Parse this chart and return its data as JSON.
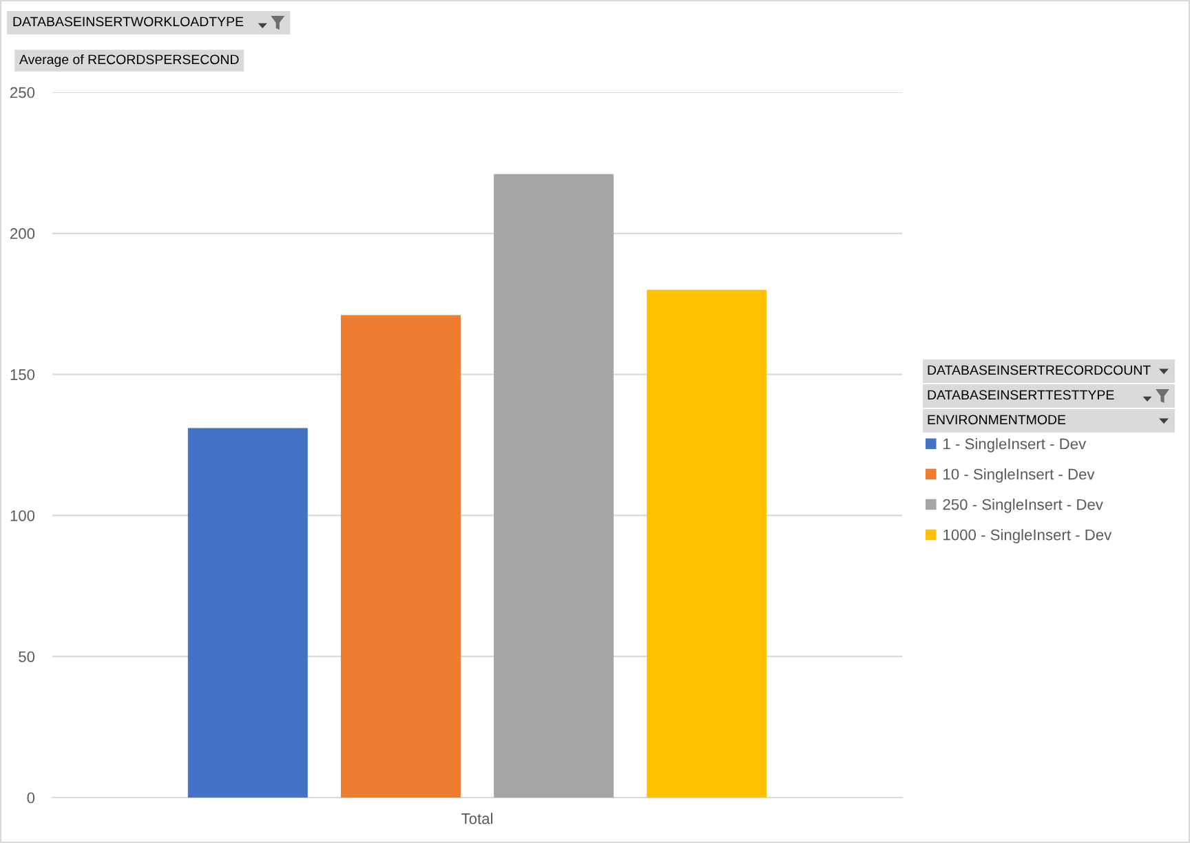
{
  "chart_data": {
    "type": "bar",
    "ylabel": "Average of RECORDSPERSECOND",
    "categories": [
      "Total"
    ],
    "series": [
      {
        "name": "1 - SingleInsert - Dev",
        "color": "#4472c4",
        "values": [
          131
        ]
      },
      {
        "name": "10 - SingleInsert - Dev",
        "color": "#ed7d31",
        "values": [
          171
        ]
      },
      {
        "name": "250 - SingleInsert - Dev",
        "color": "#a5a5a5",
        "values": [
          221
        ]
      },
      {
        "name": "1000 - SingleInsert - Dev",
        "color": "#ffc000",
        "values": [
          180
        ]
      }
    ],
    "ylim": [
      0,
      250
    ],
    "yticks": [
      0,
      50,
      100,
      150,
      200,
      250
    ],
    "grid": "y",
    "legend": "right",
    "annotations": [
      "DATABASEINSERTWORKLOADTYPE",
      "DATABASEINSERTRECORDCOUNT",
      "DATABASEINSERTTESTTYPE",
      "ENVIRONMENTMODE"
    ]
  }
}
